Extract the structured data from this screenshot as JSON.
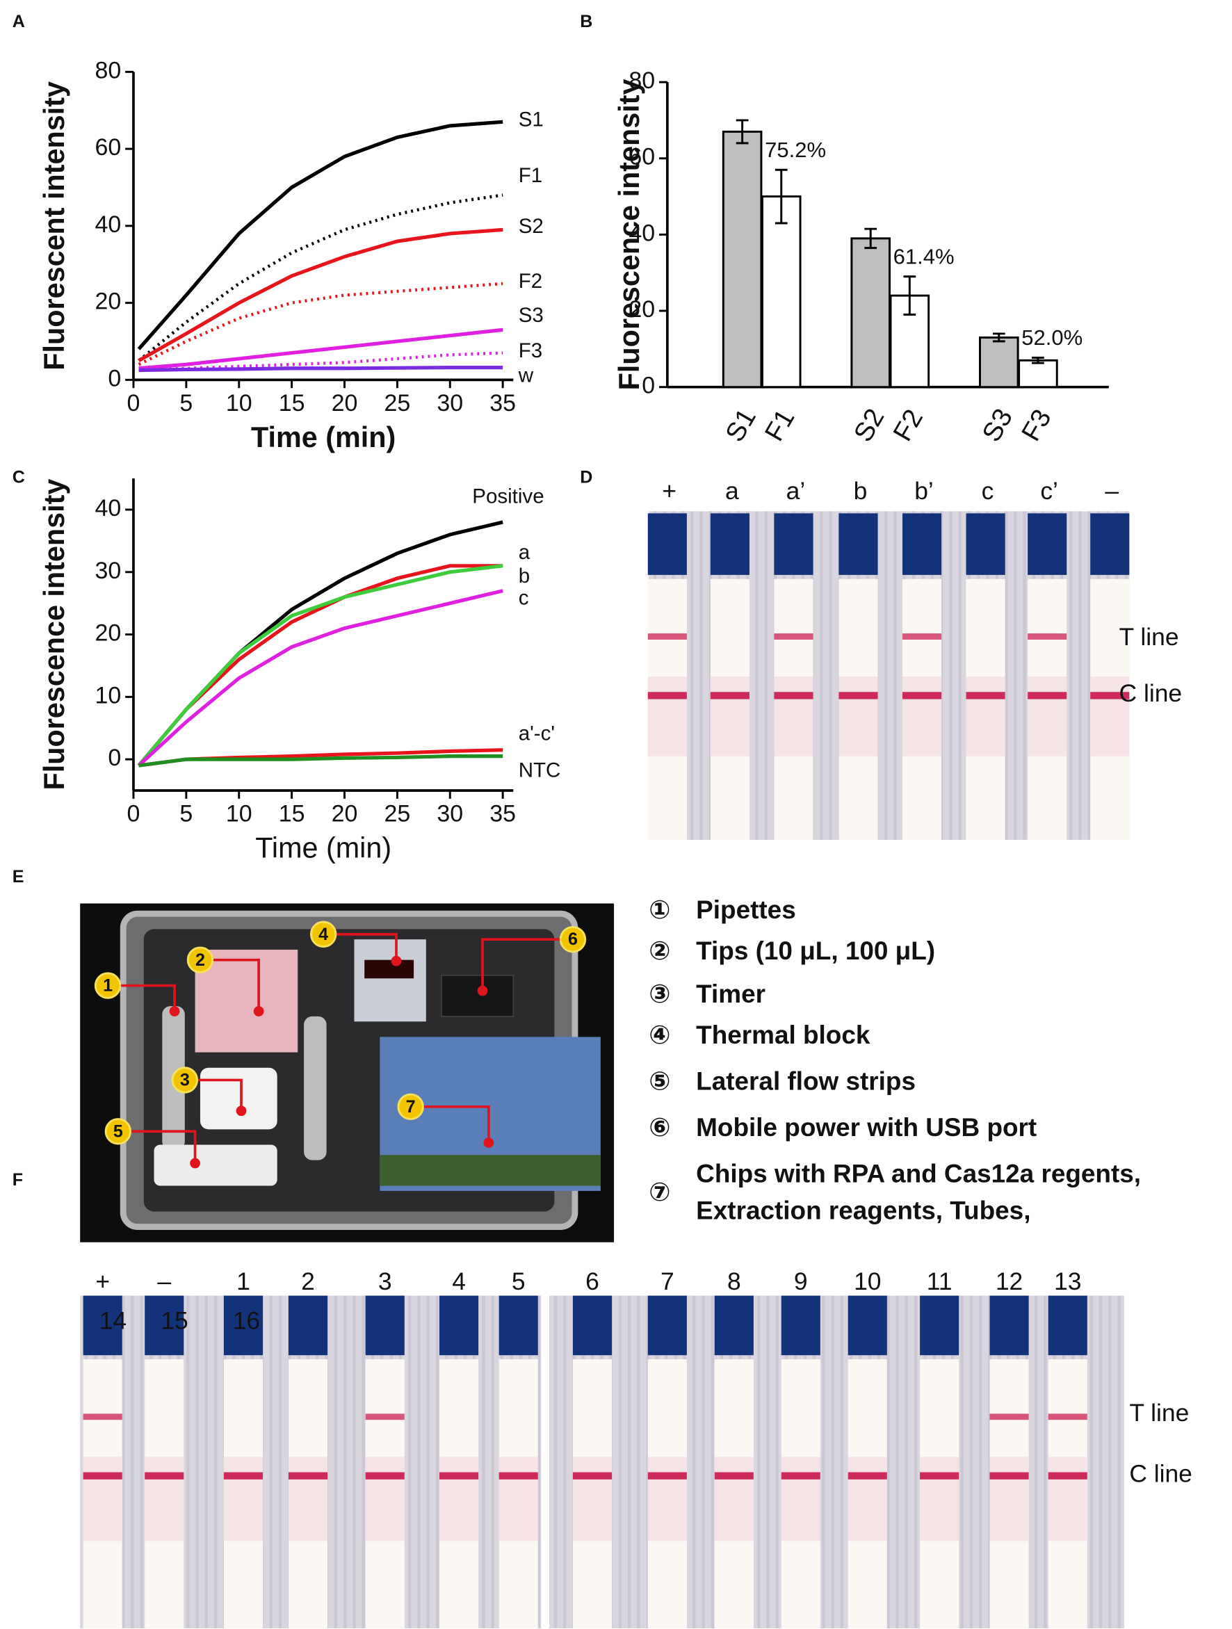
{
  "panel_labels": [
    "A",
    "B",
    "C",
    "D",
    "E",
    "F"
  ],
  "chart_data": [
    {
      "type": "line",
      "xlabel": "Time (min)",
      "ylabel": "Fluorescent intensity",
      "x": [
        0.5,
        5,
        10,
        15,
        20,
        25,
        30,
        35
      ],
      "xlim": [
        0,
        36
      ],
      "xticks": [
        0,
        5,
        10,
        15,
        20,
        25,
        30,
        35
      ],
      "ylim": [
        0,
        80
      ],
      "yticks": [
        0,
        20,
        40,
        60,
        80
      ],
      "series": [
        {
          "name": "S1",
          "color": "#000000",
          "style": "solid",
          "values": [
            8,
            22,
            38,
            50,
            58,
            63,
            66,
            67
          ]
        },
        {
          "name": "F1",
          "color": "#000000",
          "style": "dotted",
          "values": [
            5,
            15,
            25,
            33,
            39,
            43,
            46,
            48
          ]
        },
        {
          "name": "S2",
          "color": "#e8141b",
          "style": "solid",
          "values": [
            5,
            12,
            20,
            27,
            32,
            36,
            38,
            39
          ]
        },
        {
          "name": "F2",
          "color": "#e8141b",
          "style": "dotted",
          "values": [
            4,
            10,
            16,
            20,
            22,
            23,
            24,
            25
          ]
        },
        {
          "name": "S3",
          "color": "#e020e0",
          "style": "solid",
          "values": [
            3,
            4,
            5.5,
            7,
            8.5,
            10,
            11.5,
            13
          ]
        },
        {
          "name": "F3",
          "color": "#e020e0",
          "style": "dotted",
          "values": [
            2.5,
            3,
            3.5,
            4,
            4.5,
            5.5,
            6.5,
            7
          ]
        },
        {
          "name": "w",
          "color": "#7a2be0",
          "style": "solid",
          "values": [
            2.5,
            2.7,
            2.8,
            3,
            3,
            3.1,
            3.2,
            3.2
          ]
        }
      ]
    },
    {
      "type": "bar",
      "ylabel": "Fluorescence intensity",
      "categories": [
        "S1",
        "F1",
        "S2",
        "F2",
        "S3",
        "F3"
      ],
      "values": [
        67,
        50,
        39,
        24,
        13,
        7
      ],
      "errors": [
        3,
        7,
        2.5,
        5,
        1,
        0.7
      ],
      "colors": [
        "#bfbfbf",
        "#ffffff",
        "#bfbfbf",
        "#ffffff",
        "#bfbfbf",
        "#ffffff"
      ],
      "annotations": [
        "75.2%",
        "61.4%",
        "52.0%"
      ],
      "ylim": [
        0,
        80
      ],
      "yticks": [
        0,
        20,
        40,
        60,
        80
      ]
    },
    {
      "type": "line",
      "xlabel": "Time (min)",
      "ylabel": "Fluorescence intensity",
      "x": [
        0.5,
        5,
        10,
        15,
        20,
        25,
        30,
        35
      ],
      "xlim": [
        0,
        36
      ],
      "xticks": [
        0,
        5,
        10,
        15,
        20,
        25,
        30,
        35
      ],
      "ylim": [
        -5,
        45
      ],
      "yticks": [
        0,
        10,
        20,
        30,
        40
      ],
      "series": [
        {
          "name": "Positive",
          "color": "#000000",
          "style": "solid",
          "values": [
            -1,
            8,
            17,
            24,
            29,
            33,
            36,
            38
          ]
        },
        {
          "name": "a",
          "color": "#e8141b",
          "style": "solid",
          "values": [
            -1,
            8,
            16,
            22,
            26,
            29,
            31,
            31
          ]
        },
        {
          "name": "b",
          "color": "#3ccc3c",
          "style": "solid",
          "values": [
            -1,
            8,
            17,
            23,
            26,
            28,
            30,
            31
          ]
        },
        {
          "name": "c",
          "color": "#e020e0",
          "style": "solid",
          "values": [
            -1,
            6,
            13,
            18,
            21,
            23,
            25,
            27
          ]
        },
        {
          "name": "a'-c'",
          "color": "#e8141b",
          "style": "solid",
          "values": [
            -1,
            0,
            0.3,
            0.5,
            0.8,
            1,
            1.3,
            1.5
          ]
        },
        {
          "name": "NTC",
          "color": "#1f8f1f",
          "style": "solid",
          "values": [
            -1,
            0,
            0,
            0,
            0.2,
            0.3,
            0.5,
            0.5
          ]
        }
      ]
    }
  ],
  "panels": {
    "D": {
      "lanes": [
        "+",
        "a",
        "a’",
        "b",
        "b’",
        "c",
        "c’",
        "–"
      ],
      "line_labels": [
        "T line",
        "C line"
      ]
    },
    "E": {
      "callouts": [
        "1",
        "2",
        "3",
        "4",
        "5",
        "6",
        "7"
      ],
      "items": [
        {
          "marker": "①",
          "lines": [
            "Pipettes"
          ]
        },
        {
          "marker": "②",
          "lines": [
            "Tips (10 μL, 100 μL)"
          ]
        },
        {
          "marker": "③",
          "lines": [
            "Timer"
          ]
        },
        {
          "marker": "④",
          "lines": [
            "Thermal block"
          ]
        },
        {
          "marker": "⑤",
          "lines": [
            "Lateral flow strips"
          ]
        },
        {
          "marker": "⑥",
          "lines": [
            "Mobile power with USB port"
          ]
        },
        {
          "marker": "⑦",
          "lines": [
            "Chips with RPA and Cas12a regents,",
            "Extraction reagents, Tubes,"
          ]
        }
      ]
    },
    "F": {
      "lanes": [
        "+",
        "–",
        "1",
        "2",
        "3",
        "4",
        "5",
        "6",
        "7",
        "8",
        "9",
        "10",
        "11",
        "12",
        "13"
      ],
      "extra_labels": [
        "14",
        "15",
        "16"
      ],
      "line_labels": [
        "T line",
        "C line"
      ]
    }
  }
}
